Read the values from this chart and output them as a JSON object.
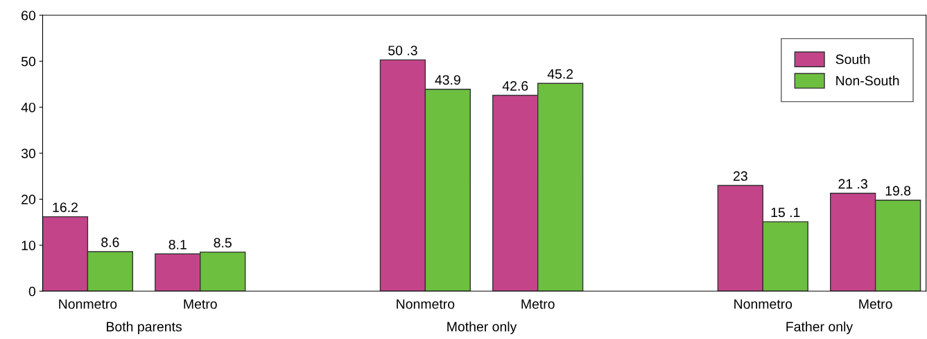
{
  "chart_data": {
    "type": "bar",
    "categories": [
      "Nonmetro",
      "Metro",
      null,
      "Nonmetro",
      "Metro",
      null,
      "Nonmetro",
      "Metro"
    ],
    "series": [
      {
        "name": "South",
        "color": "#c4448a",
        "values": [
          16.2,
          8.1,
          null,
          50.3,
          42.6,
          null,
          23,
          21.3
        ],
        "value_labels": [
          "16.2",
          "8.1",
          null,
          "50 .3",
          "42.6",
          null,
          "23",
          "21 .3"
        ]
      },
      {
        "name": "Non-South",
        "color": "#6dbf3f",
        "values": [
          8.6,
          8.5,
          null,
          43.9,
          45.2,
          null,
          15.1,
          19.8
        ],
        "value_labels": [
          "8.6",
          "8.5",
          null,
          "43.9",
          "45.2",
          null,
          "15 .1",
          "19.8"
        ]
      }
    ],
    "annotations": [
      "Both parents",
      "Mother only",
      "Father only"
    ],
    "ylim": [
      0,
      60
    ],
    "yticks": [
      0,
      10,
      20,
      30,
      40,
      50,
      60
    ],
    "grid": false,
    "legend": "top right"
  }
}
